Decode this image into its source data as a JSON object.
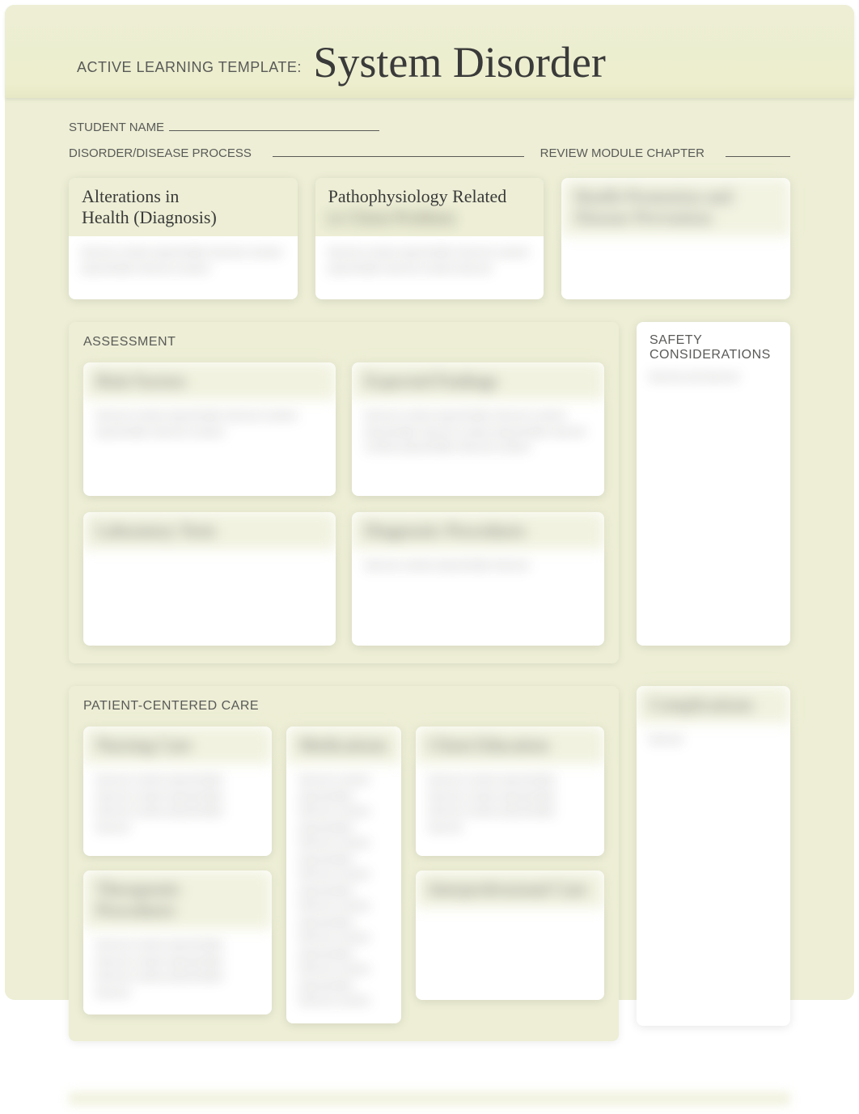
{
  "header": {
    "template_label": "ACTIVE LEARNING TEMPLATE:",
    "template_title": "System Disorder"
  },
  "fields": {
    "student_name_label": "STUDENT NAME",
    "disorder_label": "DISORDER/DISEASE PROCESS",
    "review_label": "REVIEW MODULE CHAPTER"
  },
  "top_cards": {
    "alterations": {
      "title_line1": "Alterations in",
      "title_line2": "Health (Diagnosis)",
      "body": "blurred content placeholder blurred content placeholder blurred content"
    },
    "patho": {
      "title_line1": "Pathophysiology Related",
      "title_line2": "to Client Problem",
      "body": "blurred content placeholder blurred content placeholder blurred content blurred"
    },
    "third": {
      "title": "Health Promotion and Disease Prevention",
      "body": " "
    }
  },
  "assessment": {
    "label": "ASSESSMENT",
    "risk": {
      "title": "Risk Factors",
      "body": "blurred content placeholder blurred content placeholder blurred content"
    },
    "expected": {
      "title": "Expected Findings",
      "body": "blurred content placeholder blurred content placeholder blurred content placeholder blurred content placeholder blurred content"
    },
    "labs": {
      "title": "Laboratory Tests",
      "body": " "
    },
    "diag": {
      "title": "Diagnostic Procedures",
      "body": "blurred content placeholder blurred"
    }
  },
  "safety": {
    "label": "SAFETY CONSIDERATIONS",
    "body": "blurred and blurred"
  },
  "pcc": {
    "label": "PATIENT-CENTERED CARE",
    "nursing": {
      "title": "Nursing Care",
      "body": "blurred content placeholder blurred content placeholder blurred content placeholder blurred"
    },
    "meds": {
      "title": "Medications",
      "body": "blurred content placeholder blurred content placeholder blurred content placeholder blurred content placeholder blurred content placeholder blurred content placeholder blurred content placeholder blurred content"
    },
    "edu": {
      "title": "Client Education",
      "body": "blurred content placeholder blurred content placeholder blurred content placeholder blurred"
    },
    "therapeutic": {
      "title": "Therapeutic Procedures",
      "body": "blurred content placeholder blurred content placeholder blurred content placeholder blurred"
    },
    "inter": {
      "title": "Interprofessional Care",
      "body": " "
    }
  },
  "complications": {
    "title": "Complications",
    "body": "blurred"
  },
  "colors": {
    "bg": "#edeed5",
    "card_bg": "#ffffff",
    "text_dark": "#3a3a3a",
    "text_muted": "#5a5a58"
  }
}
